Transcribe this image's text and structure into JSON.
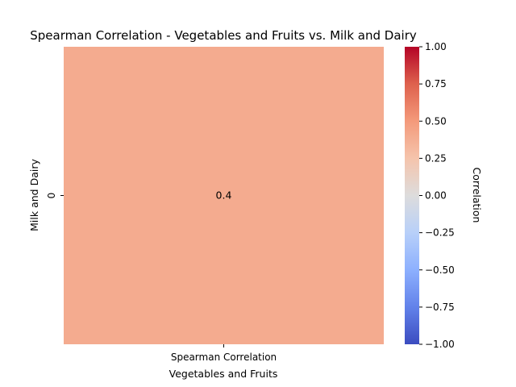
{
  "chart_data": {
    "type": "heatmap",
    "title": "Spearman Correlation - Vegetables and Fruits vs. Milk and Dairy",
    "xlabel": "Vegetables and Fruits",
    "ylabel": "Milk and Dairy",
    "x_categories": [
      "Spearman Correlation"
    ],
    "y_categories": [
      "0"
    ],
    "values": [
      [
        0.4
      ]
    ],
    "annotations": [
      [
        "0.4"
      ]
    ],
    "colormap": "coolwarm",
    "vmin": -1,
    "vmax": 1,
    "colorbar": {
      "label": "Correlation",
      "ticks": [
        -1.0,
        -0.75,
        -0.5,
        -0.25,
        0.0,
        0.25,
        0.5,
        0.75,
        1.0
      ],
      "tick_labels": [
        "−1.00",
        "−0.75",
        "−0.50",
        "−0.25",
        "0.00",
        "0.25",
        "0.50",
        "0.75",
        "1.00"
      ]
    },
    "grid": false
  }
}
